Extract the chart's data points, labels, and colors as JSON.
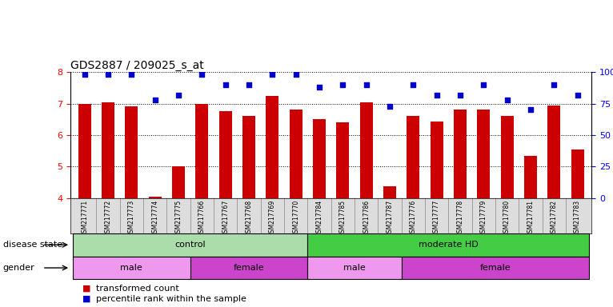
{
  "title": "GDS2887 / 209025_s_at",
  "samples": [
    "GSM217771",
    "GSM217772",
    "GSM217773",
    "GSM217774",
    "GSM217775",
    "GSM217766",
    "GSM217767",
    "GSM217768",
    "GSM217769",
    "GSM217770",
    "GSM217784",
    "GSM217785",
    "GSM217786",
    "GSM217787",
    "GSM217776",
    "GSM217777",
    "GSM217778",
    "GSM217779",
    "GSM217780",
    "GSM217781",
    "GSM217782",
    "GSM217783"
  ],
  "bar_values": [
    7.0,
    7.05,
    6.92,
    4.05,
    5.0,
    7.0,
    6.75,
    6.62,
    7.25,
    6.82,
    6.5,
    6.4,
    7.05,
    4.38,
    6.6,
    6.42,
    6.82,
    6.82,
    6.62,
    5.35,
    6.95,
    5.55
  ],
  "percentile_values": [
    98,
    98,
    98,
    78,
    82,
    98,
    90,
    90,
    98,
    98,
    88,
    90,
    90,
    73,
    90,
    82,
    82,
    90,
    78,
    70,
    90,
    82
  ],
  "bar_color": "#cc0000",
  "dot_color": "#0000cc",
  "ylim_left": [
    4,
    8
  ],
  "ylim_right": [
    0,
    100
  ],
  "yticks_left": [
    4,
    5,
    6,
    7,
    8
  ],
  "yticks_right": [
    0,
    25,
    50,
    75,
    100
  ],
  "disease_state_groups": [
    {
      "label": "control",
      "start": 0,
      "end": 9,
      "color": "#aaddaa"
    },
    {
      "label": "moderate HD",
      "start": 10,
      "end": 21,
      "color": "#44cc44"
    }
  ],
  "gender_groups": [
    {
      "label": "male",
      "start": 0,
      "end": 4,
      "color": "#ee99ee"
    },
    {
      "label": "female",
      "start": 5,
      "end": 9,
      "color": "#cc44cc"
    },
    {
      "label": "male",
      "start": 10,
      "end": 13,
      "color": "#ee99ee"
    },
    {
      "label": "female",
      "start": 14,
      "end": 21,
      "color": "#cc44cc"
    }
  ],
  "legend_bar_label": "transformed count",
  "legend_dot_label": "percentile rank within the sample",
  "left_label_disease": "disease state",
  "left_label_gender": "gender",
  "xlabel_bg": "#dddddd",
  "background_color": "#ffffff"
}
